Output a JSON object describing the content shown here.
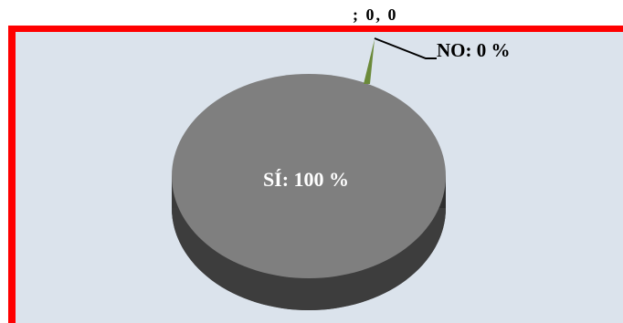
{
  "chart_data": {
    "type": "pie",
    "series": [
      {
        "label": "SÍ: 100 %",
        "value": 100,
        "color": "#7f7f7f"
      },
      {
        "label": "NO: 0 %",
        "value": 0,
        "color": "#6b8a3a"
      }
    ],
    "stray_label": "; 0, 0",
    "colors": {
      "frame": "#ff0000",
      "plot_bg": "#dbe3ec"
    }
  }
}
